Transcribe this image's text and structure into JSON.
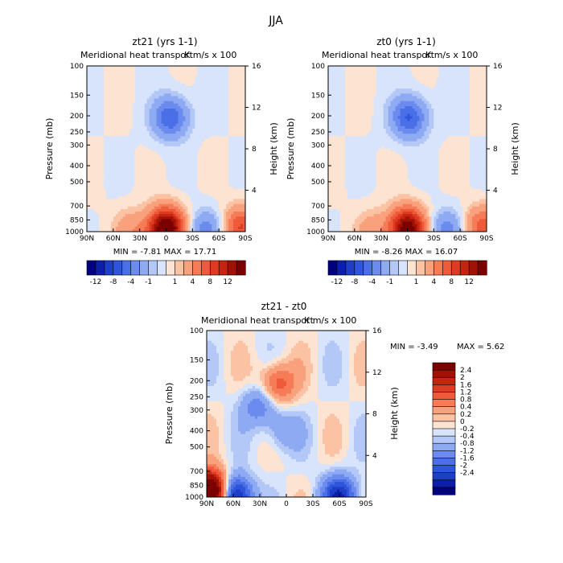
{
  "figure_title": "JJA",
  "colors": {
    "neg": [
      "#000080",
      "#0b1fa8",
      "#1e3ec8",
      "#2f55dc",
      "#4b6fe6",
      "#6b8bee",
      "#8eaaf3",
      "#b4c8f8",
      "#d7e4fb"
    ],
    "pos": [
      "#fde4d2",
      "#fbc3a4",
      "#f9a07c",
      "#f57c57",
      "#ee5b3a",
      "#dd3b22",
      "#c42410",
      "#a01205",
      "#7b0000"
    ]
  },
  "chart_data": [
    {
      "type": "heatmap",
      "name": "zt21",
      "title": "zt21 (yrs 1-1)",
      "subtitle": "Meridional heat transport",
      "units": "K m/s x 100",
      "ylabel": "Pressure (mb)",
      "y2label": "Height (km)",
      "x_ticks": [
        "90N",
        "60N",
        "30N",
        "0",
        "30S",
        "60S",
        "90S"
      ],
      "y_ticks": [
        "100",
        "150",
        "200",
        "250",
        "300",
        "400",
        "500",
        "700",
        "850",
        "1000"
      ],
      "y2_ticks": [
        "16",
        "12",
        "8",
        "4"
      ],
      "stats": "MIN = -7.81 MAX = 17.71",
      "min": -7.81,
      "max": 17.71,
      "colorbar_labels": [
        "-12",
        "-8",
        "-4",
        "-1",
        "1",
        "4",
        "8",
        "12"
      ],
      "features": [
        {
          "lat": 0,
          "p": 955,
          "value": 17.7
        },
        {
          "lat": -5,
          "p": 205,
          "value": -7.8
        },
        {
          "lat": -45,
          "p": 985,
          "value": -5.0
        },
        {
          "lat": -85,
          "p": 940,
          "value": 8.0
        },
        {
          "lat": 40,
          "p": 985,
          "value": 3.5
        }
      ]
    },
    {
      "type": "heatmap",
      "name": "zt0",
      "title": "zt0 (yrs 1-1)",
      "subtitle": "Meridional heat transport",
      "units": "K m/s x 100",
      "ylabel": "Pressure (mb)",
      "y2label": "Height (km)",
      "x_ticks": [
        "90N",
        "60N",
        "30N",
        "0",
        "30S",
        "60S",
        "90S"
      ],
      "y_ticks": [
        "100",
        "150",
        "200",
        "250",
        "300",
        "400",
        "500",
        "700",
        "850",
        "1000"
      ],
      "y2_ticks": [
        "16",
        "12",
        "8",
        "4"
      ],
      "stats": "MIN = -8.26 MAX = 16.07",
      "min": -8.26,
      "max": 16.07,
      "colorbar_labels": [
        "-12",
        "-8",
        "-4",
        "-1",
        "1",
        "4",
        "8",
        "12"
      ],
      "features": [
        {
          "lat": 0,
          "p": 955,
          "value": 16.0
        },
        {
          "lat": -2,
          "p": 205,
          "value": -8.2
        },
        {
          "lat": -45,
          "p": 985,
          "value": -5.0
        },
        {
          "lat": -85,
          "p": 940,
          "value": 7.0
        },
        {
          "lat": 40,
          "p": 985,
          "value": 3.0
        }
      ]
    },
    {
      "type": "heatmap",
      "name": "diff",
      "title": "zt21 - zt0",
      "subtitle": "Meridional heat transport",
      "units": "K m/s x 100",
      "ylabel": "Pressure (mb)",
      "y2label": "Height (km)",
      "x_ticks": [
        "90N",
        "60N",
        "30N",
        "0",
        "30S",
        "60S",
        "90S"
      ],
      "y_ticks": [
        "100",
        "150",
        "200",
        "250",
        "300",
        "400",
        "500",
        "700",
        "850",
        "1000"
      ],
      "y2_ticks": [
        "16",
        "12",
        "8",
        "4"
      ],
      "stats_min": "MIN = -3.49",
      "stats_max": "MAX = 5.62",
      "min": -3.49,
      "max": 5.62,
      "colorbar_labels": [
        "2.4",
        "2",
        "1.6",
        "1.2",
        "0.8",
        "0.4",
        "0.2",
        "0",
        "-0.2",
        "-0.4",
        "-0.8",
        "-1.2",
        "-1.6",
        "-2",
        "-2.4"
      ],
      "features": [
        {
          "lat": 85,
          "p": 940,
          "value": 5.6
        },
        {
          "lat": 10,
          "p": 210,
          "value": 1.6
        },
        {
          "lat": 60,
          "p": 990,
          "value": -3.4
        },
        {
          "lat": -60,
          "p": 985,
          "value": -2.4
        },
        {
          "lat": 30,
          "p": 280,
          "value": -1.2
        },
        {
          "lat": 5,
          "p": 400,
          "value": -0.8
        }
      ]
    }
  ]
}
